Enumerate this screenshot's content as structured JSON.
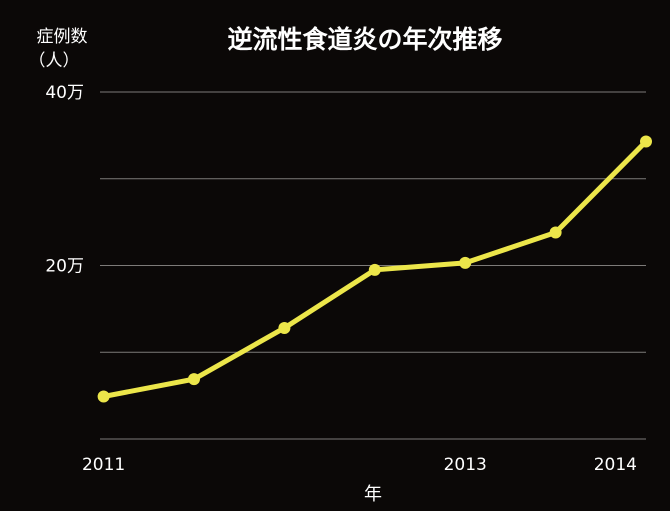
{
  "colors": {
    "background": "#0b0807",
    "series": "#ece64a",
    "grid": "#7d7a78",
    "text": "#ffffff"
  },
  "chart_data": {
    "type": "line",
    "title": "逆流性食道炎の年次推移",
    "xlabel": "年",
    "ylabel_line1": "症例数",
    "ylabel_line2": "（人）",
    "x": [
      2011,
      2011.5,
      2012,
      2012.5,
      2013,
      2013.5,
      2014
    ],
    "x_ticks": [
      2011,
      2013,
      2014
    ],
    "x_tick_labels": [
      "2011",
      "2013",
      "2014"
    ],
    "x_range": [
      2010.98,
      2014
    ],
    "y_ticks": [
      0,
      100000,
      200000,
      300000,
      400000
    ],
    "y_tick_labels": [
      "",
      "",
      "20万",
      "",
      "40万"
    ],
    "ylim": [
      0,
      400000
    ],
    "grid": true,
    "series": [
      {
        "values": [
          49000,
          69000,
          128000,
          195000,
          203000,
          238000,
          343000
        ]
      }
    ]
  }
}
